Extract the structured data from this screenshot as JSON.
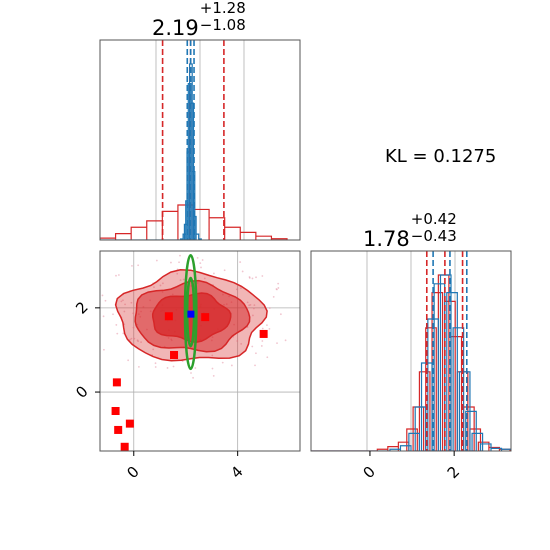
{
  "kl_text": "KL = 0.1275",
  "colors": {
    "red": "#d62728",
    "blue": "#1f77b4",
    "green": "#2ca02c",
    "marker_blue": "#0000ff",
    "marker_red": "#ff0000",
    "grid": "#b0b0b0"
  },
  "chart_data": [
    {
      "type": "histogram",
      "panel": "top-left",
      "title": {
        "value": "2.19",
        "plus": "+1.28",
        "minus": "−1.08"
      },
      "x_range": [
        -1.3,
        6.4
      ],
      "grid": true,
      "quantile_lines": {
        "red": [
          1.11,
          2.19,
          3.47
        ],
        "blue": [
          2.06,
          2.19,
          2.32
        ]
      },
      "series": [
        {
          "color": "red",
          "x": [
            -1.0,
            -0.4,
            0.2,
            0.8,
            1.4,
            2.0,
            2.6,
            3.2,
            3.8,
            4.4,
            5.0,
            5.6
          ],
          "density": [
            0.3,
            1.0,
            2.0,
            3.0,
            4.5,
            5.5,
            4.8,
            3.5,
            2.0,
            1.2,
            0.6,
            0.2
          ]
        },
        {
          "color": "blue",
          "x": [
            1.85,
            1.95,
            2.0,
            2.05,
            2.1,
            2.15,
            2.2,
            2.25,
            2.3,
            2.35,
            2.45,
            2.55
          ],
          "density": [
            0.5,
            3,
            8,
            20,
            45,
            80,
            90,
            70,
            35,
            12,
            3,
            0.5
          ]
        }
      ]
    },
    {
      "type": "histogram",
      "panel": "bottom-right",
      "title": {
        "value": "1.78",
        "plus": "+0.42",
        "minus": "−0.43"
      },
      "x_range": [
        -1.4,
        3.35
      ],
      "x_ticks": [
        0,
        2
      ],
      "x_tick_labels": [
        "0",
        "2"
      ],
      "grid": true,
      "quantile_lines": {
        "red": [
          1.35,
          1.78,
          2.2
        ],
        "blue": [
          1.5,
          1.9,
          2.3
        ]
      },
      "series": [
        {
          "color": "red",
          "x": [
            0.3,
            0.55,
            0.8,
            1.0,
            1.15,
            1.3,
            1.45,
            1.6,
            1.75,
            1.9,
            2.05,
            2.2,
            2.35,
            2.5,
            2.7,
            2.95,
            3.2
          ],
          "density": [
            0.2,
            0.5,
            1.0,
            2.5,
            5,
            9,
            14,
            18,
            20,
            17,
            13,
            9,
            5,
            2.5,
            1,
            0.4,
            0.2
          ]
        },
        {
          "color": "blue",
          "x": [
            0.6,
            0.85,
            1.05,
            1.2,
            1.35,
            1.5,
            1.65,
            1.8,
            1.95,
            2.1,
            2.25,
            2.4,
            2.55,
            2.75,
            3.0,
            3.25
          ],
          "density": [
            0.2,
            0.6,
            2.0,
            5,
            10,
            15,
            19,
            20,
            18,
            14,
            9,
            4.5,
            2,
            0.8,
            0.3,
            0.2
          ]
        }
      ]
    },
    {
      "type": "contour",
      "panel": "bottom-left",
      "x_range": [
        -1.3,
        6.4
      ],
      "y_range": [
        -1.4,
        3.35
      ],
      "x_ticks": [
        0,
        4
      ],
      "x_tick_labels": [
        "0",
        "4"
      ],
      "y_ticks": [
        0,
        2
      ],
      "y_tick_labels": [
        "0",
        "2"
      ],
      "grid": true,
      "red_contours": {
        "center": [
          2.19,
          1.78
        ],
        "levels": [
          {
            "rx": 2.8,
            "ry": 1.05,
            "fill_opacity": 0.45
          },
          {
            "rx": 2.2,
            "ry": 0.8,
            "fill_opacity": 0.7
          },
          {
            "rx": 1.5,
            "ry": 0.55,
            "fill_opacity": 1.0
          }
        ]
      },
      "green_contour": {
        "center": [
          2.19,
          1.9
        ],
        "rx": 0.22,
        "ry": 1.35
      },
      "blue_marker": {
        "x": 2.2,
        "y": 1.85
      },
      "red_squares": [
        {
          "x": 1.35,
          "y": 1.8
        },
        {
          "x": 2.75,
          "y": 1.78
        },
        {
          "x": 1.55,
          "y": 0.88
        },
        {
          "x": 5.0,
          "y": 1.38
        },
        {
          "x": -0.65,
          "y": 0.23
        },
        {
          "x": -0.7,
          "y": -0.45
        },
        {
          "x": -0.6,
          "y": -0.9
        },
        {
          "x": -0.15,
          "y": -0.75
        },
        {
          "x": -0.35,
          "y": -1.3
        }
      ]
    }
  ]
}
